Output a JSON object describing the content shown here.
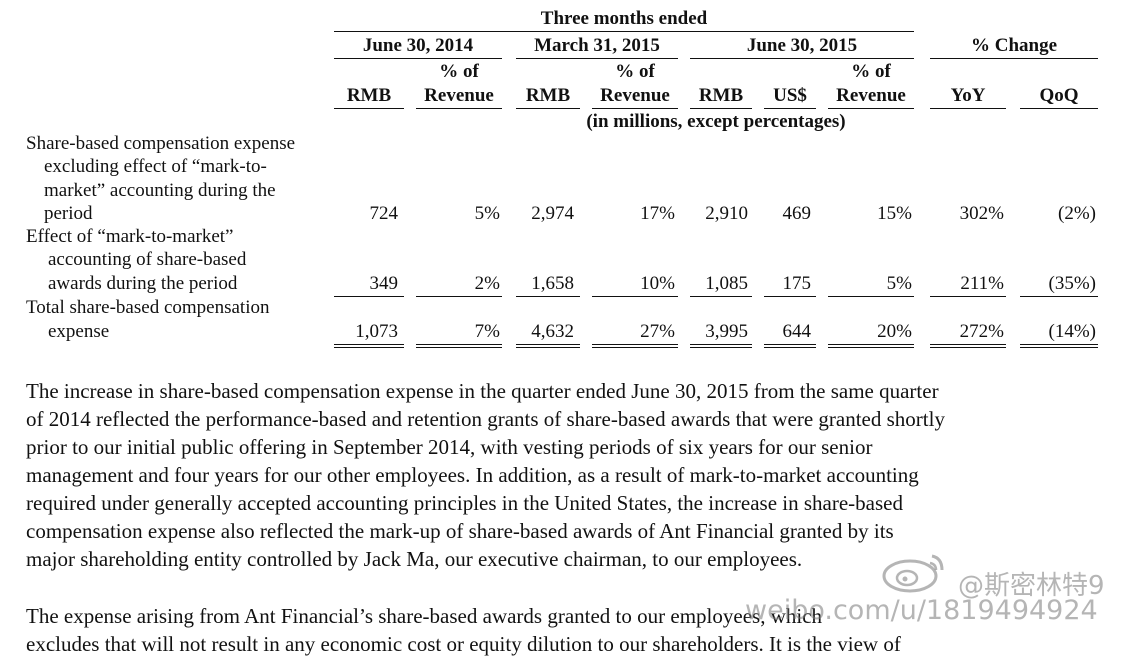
{
  "header": {
    "period_group": "Three months ended",
    "col_groups": [
      "June 30, 2014",
      "March 31, 2015",
      "June 30, 2015",
      "% Change"
    ],
    "pct_of_line1": "% of",
    "pct_of_line2": "Revenue",
    "rmb": "RMB",
    "usd": "US$",
    "yoy": "YoY",
    "qoq": "QoQ",
    "units": "(in millions, except percentages)"
  },
  "rows": [
    {
      "label_lines": [
        "Share-based compensation expense",
        "excluding effect of “mark-to-",
        "market” accounting during the",
        "period"
      ],
      "values": [
        "724",
        "5%",
        "2,974",
        "17%",
        "2,910",
        "469",
        "15%",
        "302%",
        "(2%)"
      ]
    },
    {
      "label_lines": [
        "Effect of “mark-to-market”",
        "accounting of share-based",
        "awards during the period"
      ],
      "values": [
        "349",
        "2%",
        "1,658",
        "10%",
        "1,085",
        "175",
        "5%",
        "211%",
        "(35%)"
      ]
    },
    {
      "label_lines": [
        "Total share-based compensation",
        "expense"
      ],
      "values": [
        "1,073",
        "7%",
        "4,632",
        "27%",
        "3,995",
        "644",
        "20%",
        "272%",
        "(14%)"
      ]
    }
  ],
  "paragraph1": [
    "The increase in share-based compensation expense in the quarter ended June 30, 2015 from the same quarter",
    "of 2014 reflected the performance-based and retention grants of share-based awards that were granted shortly",
    "prior to our initial public offering in September 2014, with vesting periods of six years for our senior",
    "management and four years for our other employees. In addition, as a result of mark-to-market accounting",
    "required under generally accepted accounting principles in the United States, the increase in share-based",
    "compensation expense also reflected the mark-up of share-based awards of Ant Financial granted by its",
    "major shareholding entity controlled by Jack Ma, our executive chairman, to our employees."
  ],
  "paragraph2": [
    "The expense arising from Ant Financial’s share-based awards granted to our employees, which",
    "excludes that will not result in any economic cost or equity dilution to our shareholders. It is the view of"
  ],
  "watermark": {
    "handle": "@斯密林特9",
    "url": "weibo.com/u/1819494924"
  }
}
